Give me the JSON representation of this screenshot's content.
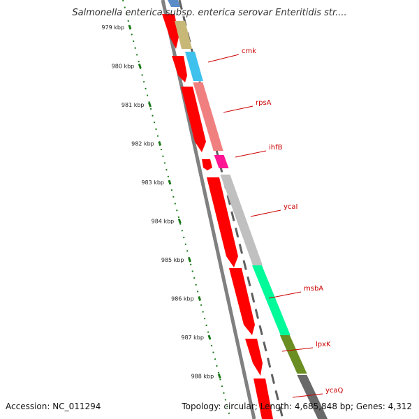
{
  "header": {
    "title": "Salmonella enterica subsp. enterica serovar Enteritidis str...."
  },
  "footer": {
    "accession": "Accession: NC_011294",
    "summary": "Topology: circular; Length: 4,685,848 bp; Genes: 4,312"
  },
  "colors": {
    "cds": "#ff0000",
    "label": "#cc0000",
    "tick": "#1a7a1a",
    "backbone": "#808080"
  },
  "scale": {
    "unit": "kbp",
    "ticks": [
      {
        "label": "979 kbp"
      },
      {
        "label": "980 kbp"
      },
      {
        "label": "981 kbp"
      },
      {
        "label": "982 kbp"
      },
      {
        "label": "983 kbp"
      },
      {
        "label": "984 kbp"
      },
      {
        "label": "985 kbp"
      },
      {
        "label": "986 kbp"
      },
      {
        "label": "987 kbp"
      },
      {
        "label": "988 kbp"
      }
    ]
  },
  "genes": [
    {
      "name": "cmk",
      "color": "#3fc1ee"
    },
    {
      "name": "rpsA",
      "color": "#f08080"
    },
    {
      "name": "ihfB",
      "color": "#ff1493"
    },
    {
      "name": "ycaI",
      "color": "#c0c0c0"
    },
    {
      "name": "msbA",
      "color": "#00fa9a"
    },
    {
      "name": "lpxK",
      "color": "#6b8e23"
    },
    {
      "name": "ycaQ",
      "color": "#696969"
    }
  ]
}
